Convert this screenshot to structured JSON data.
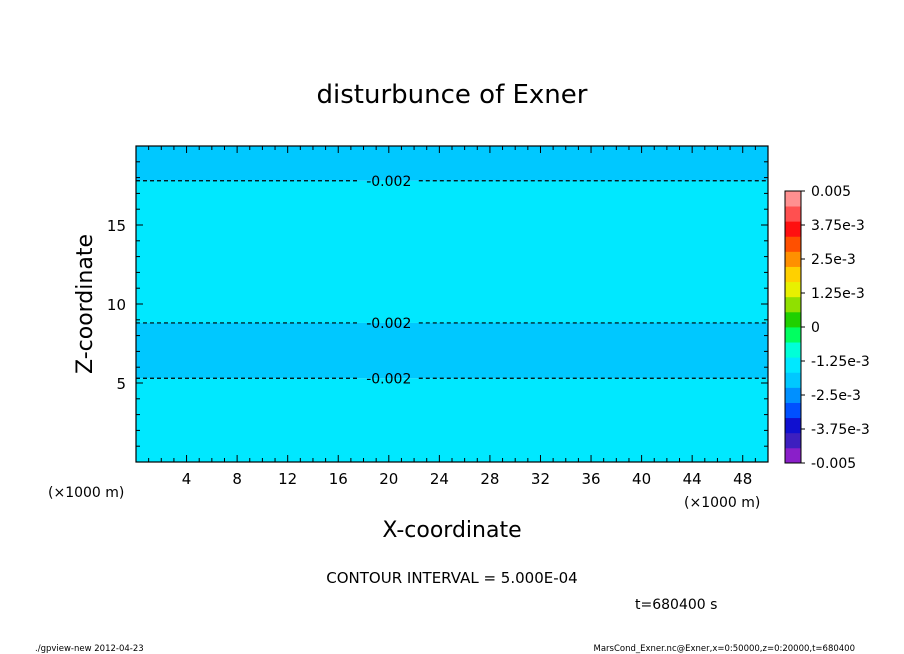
{
  "chart_data": {
    "type": "contour",
    "title": "disturbunce of Exner",
    "xlabel": "X-coordinate",
    "ylabel": "Z-coordinate",
    "x_units": "(×1000 m)",
    "y_units": "(×1000 m)",
    "xlim": [
      0,
      50
    ],
    "ylim": [
      0,
      20
    ],
    "x_ticks": [
      4,
      8,
      12,
      16,
      20,
      24,
      28,
      32,
      36,
      40,
      44,
      48
    ],
    "y_ticks": [
      5,
      10,
      15
    ],
    "bands": [
      {
        "z_from": 0,
        "z_to": 5.3,
        "color": "#00e8ff"
      },
      {
        "z_from": 5.3,
        "z_to": 8.8,
        "color": "#00c8ff"
      },
      {
        "z_from": 8.8,
        "z_to": 17.8,
        "color": "#00e8ff"
      },
      {
        "z_from": 17.8,
        "z_to": 20,
        "color": "#00c8ff"
      }
    ],
    "contours": [
      {
        "z": 5.3,
        "label": "-0.002"
      },
      {
        "z": 8.8,
        "label": "-0.002"
      },
      {
        "z": 17.8,
        "label": "-0.002"
      }
    ],
    "colorbar": {
      "min": -0.005,
      "max": 0.005,
      "labels": [
        "0.005",
        "3.75e-3",
        "2.5e-3",
        "1.25e-3",
        "0",
        "-1.25e-3",
        "-2.5e-3",
        "-3.75e-3",
        "-0.005"
      ],
      "colors": [
        "#8a1fc9",
        "#3d1fbf",
        "#1010d0",
        "#0050ff",
        "#0090ff",
        "#00c8ff",
        "#00e8ff",
        "#00ffd8",
        "#00ff60",
        "#20d000",
        "#90e000",
        "#e8f000",
        "#ffd000",
        "#ff9000",
        "#ff5000",
        "#ff1010",
        "#ff5050",
        "#ff9090"
      ]
    },
    "annotations": {
      "contour_interval": "CONTOUR INTERVAL = 5.000E-04",
      "time": "t=680400 s",
      "footer_left": "./gpview-new  2012-04-23",
      "footer_right": "MarsCond_Exner.nc@Exner,x=0:50000,z=0:20000,t=680400"
    }
  }
}
